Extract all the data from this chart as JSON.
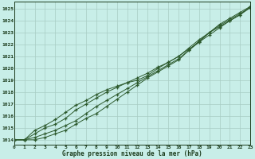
{
  "title": "Graphe pression niveau de la mer (hPa)",
  "background_color": "#c8eee8",
  "grid_color": "#a8ccc4",
  "line_color": "#2d5a2d",
  "xlim": [
    0,
    23
  ],
  "ylim": [
    1013.6,
    1025.6
  ],
  "yticks": [
    1014,
    1015,
    1016,
    1017,
    1018,
    1019,
    1020,
    1021,
    1022,
    1023,
    1024,
    1025
  ],
  "xticks": [
    0,
    1,
    2,
    3,
    4,
    5,
    6,
    7,
    8,
    9,
    10,
    11,
    12,
    13,
    14,
    15,
    16,
    17,
    18,
    19,
    20,
    21,
    22,
    23
  ],
  "hours": [
    0,
    1,
    2,
    3,
    4,
    5,
    6,
    7,
    8,
    9,
    10,
    11,
    12,
    13,
    14,
    15,
    16,
    17,
    18,
    19,
    20,
    21,
    22,
    23
  ],
  "line1": [
    1014.0,
    1014.0,
    1014.2,
    1014.5,
    1014.8,
    1015.2,
    1015.6,
    1016.2,
    1016.8,
    1017.3,
    1017.8,
    1018.3,
    1018.8,
    1019.3,
    1019.8,
    1020.3,
    1020.8,
    1021.5,
    1022.2,
    1023.0,
    1023.5,
    1024.0,
    1024.5,
    1025.1
  ],
  "line2": [
    1014.0,
    1014.0,
    1014.5,
    1015.0,
    1015.3,
    1015.8,
    1016.5,
    1017.0,
    1017.5,
    1018.0,
    1018.4,
    1018.8,
    1019.2,
    1019.6,
    1020.1,
    1020.5,
    1021.0,
    1021.7,
    1022.4,
    1023.0,
    1023.7,
    1024.2,
    1024.7,
    1025.2
  ],
  "line3": [
    1014.0,
    1014.0,
    1014.8,
    1015.2,
    1015.7,
    1016.3,
    1016.9,
    1017.3,
    1017.8,
    1018.2,
    1018.5,
    1018.8,
    1019.0,
    1019.4,
    1020.0,
    1020.5,
    1021.0,
    1021.6,
    1022.2,
    1022.8,
    1023.4,
    1024.0,
    1024.5,
    1025.2
  ],
  "line4": [
    1014.0,
    1014.0,
    1014.0,
    1014.2,
    1014.5,
    1014.8,
    1015.3,
    1015.8,
    1016.2,
    1016.8,
    1017.4,
    1018.0,
    1018.6,
    1019.2,
    1019.7,
    1020.2,
    1020.7,
    1021.5,
    1022.3,
    1023.0,
    1023.6,
    1024.1,
    1024.6,
    1025.1
  ]
}
